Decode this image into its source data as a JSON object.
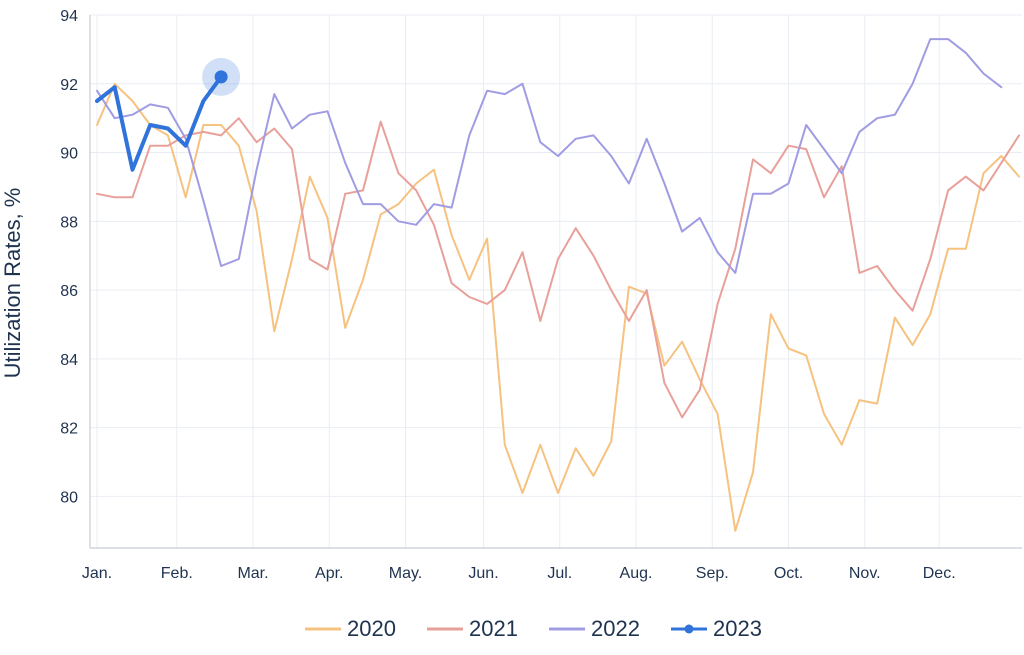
{
  "chart_data": {
    "type": "line",
    "ylabel": "Utilization Rates, %",
    "xlabel": "",
    "ylim": [
      78.5,
      94
    ],
    "y_ticks": [
      80,
      82,
      84,
      86,
      88,
      90,
      92,
      94
    ],
    "x_tick_labels": [
      "Jan.",
      "Feb.",
      "Mar.",
      "Apr.",
      "May.",
      "Jun.",
      "Jul.",
      "Aug.",
      "Sep.",
      "Oct.",
      "Nov.",
      "Dec."
    ],
    "x_unit": "week",
    "xlim": [
      1,
      52
    ],
    "grid": true,
    "legend_position": "bottom",
    "colors": {
      "2020": "#f6c27f",
      "2021": "#e8a09a",
      "2022": "#a09ce3",
      "2023": "#2f73db",
      "axis": "#c7ccd4",
      "grid": "#e9edf3",
      "text": "#1f3350"
    },
    "series": [
      {
        "name": "2020",
        "values": [
          90.8,
          92.0,
          91.5,
          90.8,
          90.5,
          88.7,
          90.8,
          90.8,
          90.2,
          88.3,
          84.8,
          86.9,
          89.3,
          88.1,
          84.9,
          86.3,
          88.2,
          88.5,
          89.1,
          89.5,
          87.6,
          86.3,
          87.5,
          81.5,
          80.1,
          81.5,
          80.1,
          81.4,
          80.6,
          81.6,
          86.1,
          85.9,
          83.8,
          84.5,
          83.4,
          82.4,
          79.0,
          80.7,
          85.3,
          84.3,
          84.1,
          82.4,
          81.5,
          82.8,
          82.7,
          85.2,
          84.4,
          85.3,
          87.2,
          87.2,
          89.4,
          89.9,
          89.3
        ]
      },
      {
        "name": "2021",
        "values": [
          88.8,
          88.7,
          88.7,
          90.2,
          90.2,
          90.5,
          90.6,
          90.5,
          91.0,
          90.3,
          90.7,
          90.1,
          86.9,
          86.6,
          88.8,
          88.9,
          90.9,
          89.4,
          88.9,
          87.9,
          86.2,
          85.8,
          85.6,
          86.0,
          87.1,
          85.1,
          86.9,
          87.8,
          87.0,
          86.0,
          85.1,
          86.0,
          83.3,
          82.3,
          83.1,
          85.6,
          87.2,
          89.8,
          89.4,
          90.2,
          90.1,
          88.7,
          89.6,
          86.5,
          86.7,
          86.0,
          85.4,
          86.9,
          88.9,
          89.3,
          88.9,
          89.7,
          90.5
        ]
      },
      {
        "name": "2022",
        "values": [
          91.8,
          91.0,
          91.1,
          91.4,
          91.3,
          90.4,
          88.6,
          86.7,
          86.9,
          89.5,
          91.7,
          90.7,
          91.1,
          91.2,
          89.7,
          88.5,
          88.5,
          88.0,
          87.9,
          88.5,
          88.4,
          90.5,
          91.8,
          91.7,
          92.0,
          90.3,
          89.9,
          90.4,
          90.5,
          89.9,
          89.1,
          90.4,
          89.1,
          87.7,
          88.1,
          87.1,
          86.5,
          88.8,
          88.8,
          89.1,
          90.8,
          90.1,
          89.4,
          90.6,
          91.0,
          91.1,
          92.0,
          93.3,
          93.3,
          92.9,
          92.3,
          91.9
        ]
      },
      {
        "name": "2023",
        "values": [
          91.5,
          91.9,
          89.5,
          90.8,
          90.7,
          90.2,
          91.5,
          92.2
        ]
      }
    ]
  }
}
